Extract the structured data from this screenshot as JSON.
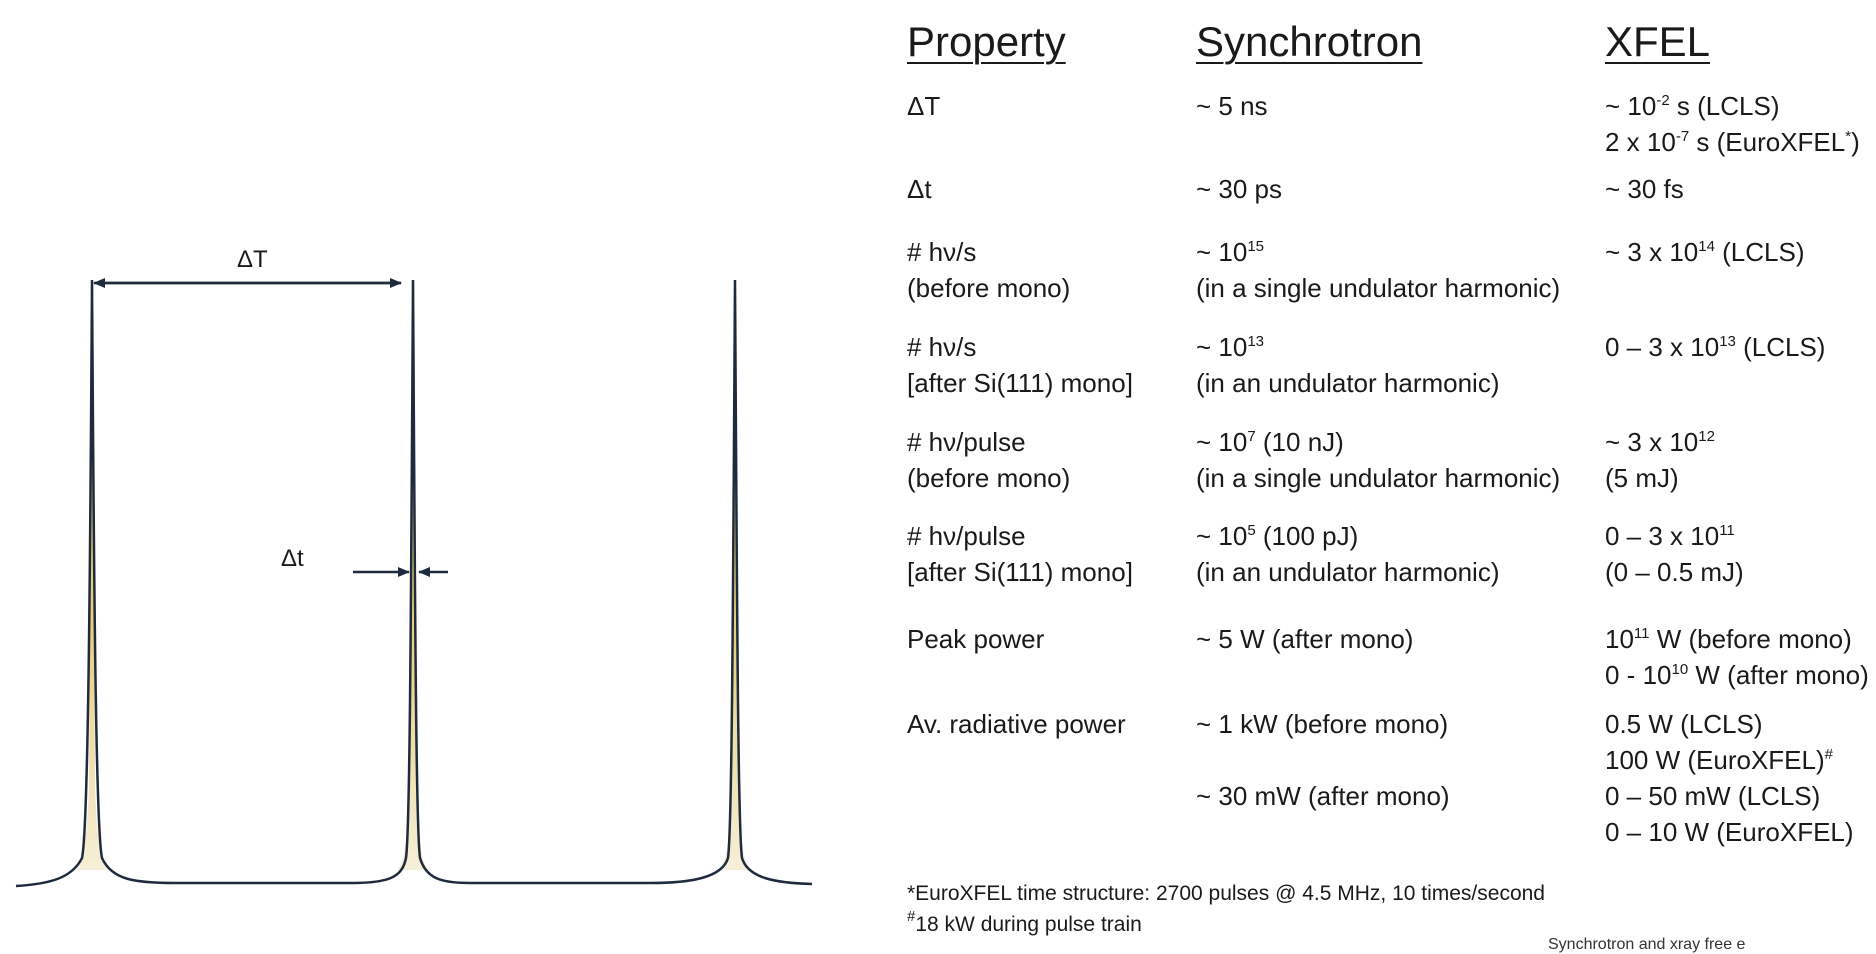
{
  "diagram": {
    "period_label": "ΔT",
    "width_label": "Δt",
    "colors": {
      "baseline": "#1e2a3e",
      "pulse_fill_top": "#d9b64c",
      "pulse_fill_bottom": "#f6efd8"
    }
  },
  "table": {
    "headers": [
      "Property",
      "Synchrotron",
      "XFEL"
    ],
    "rows": [
      {
        "c1": [
          "ΔT"
        ],
        "c2": [
          "~ 5 ns"
        ],
        "c3": [
          "~ 10<sup>-2</sup> s (LCLS)",
          "2 x 10<sup>-7</sup> s (EuroXFEL<sup>*</sup>)"
        ]
      },
      {
        "c1": [
          "Δt"
        ],
        "c2": [
          "~ 30 ps"
        ],
        "c3": [
          "~ 30 fs"
        ]
      },
      {
        "c1": [
          "# hν/s",
          "(before mono)"
        ],
        "c2": [
          "~ 10<sup>15</sup>",
          "(in a single undulator harmonic)"
        ],
        "c3": [
          "~ 3 x 10<sup>14</sup> (LCLS)"
        ]
      },
      {
        "c1": [
          "# hν/s",
          "[after Si(111) mono]"
        ],
        "c2": [
          "~ 10<sup>13</sup>",
          "(in an undulator harmonic)"
        ],
        "c3": [
          "0 – 3 x 10<sup>13</sup> (LCLS)"
        ]
      },
      {
        "c1": [
          "# hν/pulse",
          "(before mono)"
        ],
        "c2": [
          "~ 10<sup>7</sup> (10 nJ)",
          "(in a single undulator harmonic)"
        ],
        "c3": [
          "~ 3 x 10<sup>12</sup>",
          "(5 mJ)"
        ]
      },
      {
        "c1": [
          "# hν/pulse",
          "[after Si(111) mono]"
        ],
        "c2": [
          "~ 10<sup>5</sup> (100 pJ)",
          "(in an undulator harmonic)"
        ],
        "c3": [
          "0 – 3 x 10<sup>11</sup>",
          "(0 – 0.5 mJ)"
        ]
      },
      {
        "c1": [
          "Peak power"
        ],
        "c2": [
          "~ 5 W (after mono)"
        ],
        "c3": [
          "10<sup>11</sup> W (before mono)",
          "0 - 10<sup>10</sup> W (after mono)"
        ]
      },
      {
        "c1": [
          "Av. radiative power"
        ],
        "c2": [
          "~ 1 kW (before mono)"
        ],
        "c3": [
          "0.5 W (LCLS)",
          "100 W (EuroXFEL)<sup>#</sup>"
        ]
      },
      {
        "c1": [
          ""
        ],
        "c2": [
          "~ 30 mW (after mono)"
        ],
        "c3": [
          "0 – 50 mW (LCLS)",
          "0 – 10 W (EuroXFEL)"
        ]
      }
    ]
  },
  "footnotes": [
    "*EuroXFEL time structure: 2700 pulses @ 4.5 MHz, 10 times/second",
    "<sup>#</sup>18 kW during pulse train"
  ],
  "credit": "Synchrotron and xray free e"
}
